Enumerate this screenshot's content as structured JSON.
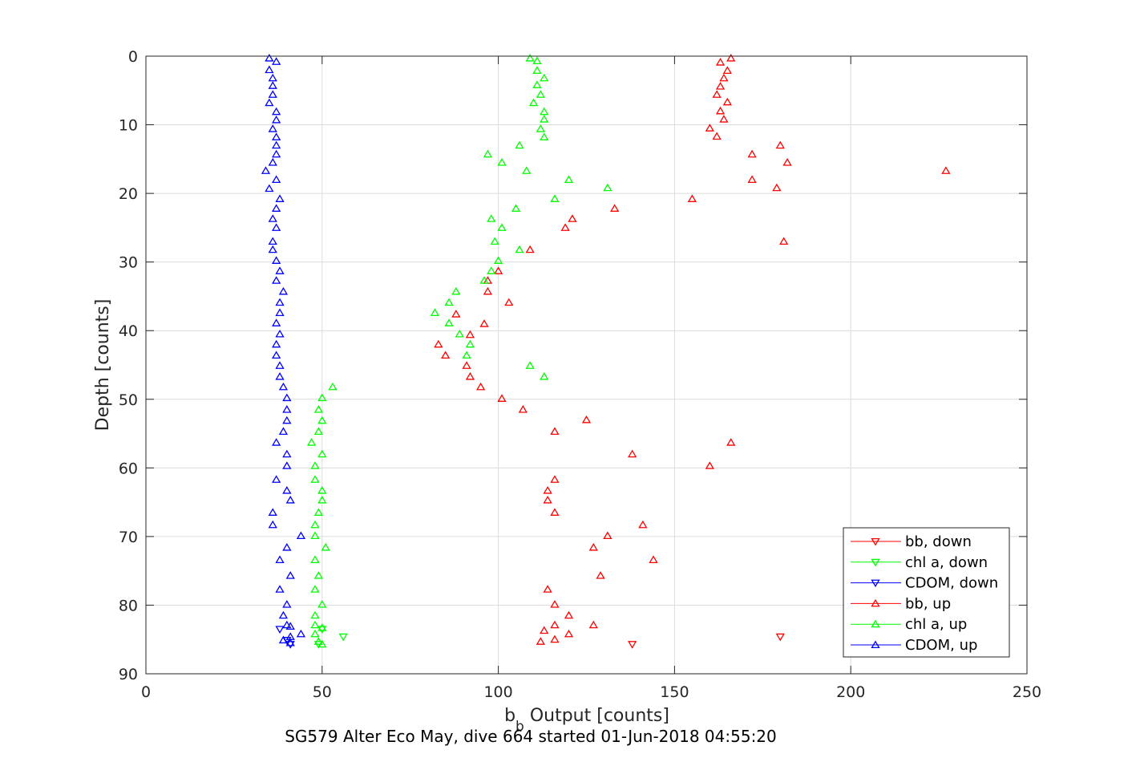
{
  "chart_data": {
    "type": "scatter",
    "xlabel": "b",
    "xlabel_sub": "b",
    "xlabel_rest": " Output [counts]",
    "ylabel": "Depth [counts]",
    "subtitle": "SG579 Alter Eco May, dive 664 started 01-Jun-2018 04:55:20",
    "xlim": [
      0,
      250
    ],
    "ylim": [
      0,
      90
    ],
    "y_reversed": true,
    "grid": true,
    "legend_position": "bottom-right",
    "xticks": [
      0,
      50,
      100,
      150,
      200,
      250
    ],
    "yticks": [
      0,
      10,
      20,
      30,
      40,
      50,
      60,
      70,
      80,
      90
    ],
    "legend": [
      {
        "label": "bb, down",
        "color": "#ff0000",
        "marker": "triangle-down"
      },
      {
        "label": "chl a, down",
        "color": "#00ff00",
        "marker": "triangle-down"
      },
      {
        "label": "CDOM, down",
        "color": "#0000ff",
        "marker": "triangle-down"
      },
      {
        "label": "bb, up",
        "color": "#ff0000",
        "marker": "triangle-up"
      },
      {
        "label": "chl a, up",
        "color": "#00ff00",
        "marker": "triangle-up"
      },
      {
        "label": "CDOM, up",
        "color": "#0000ff",
        "marker": "triangle-up"
      }
    ],
    "series": [
      {
        "name": "bb, down",
        "color": "#ff0000",
        "marker": "triangle-down",
        "points": [
          [
            180,
            84.6
          ],
          [
            138,
            85.7
          ]
        ]
      },
      {
        "name": "chl a, down",
        "color": "#00ff00",
        "marker": "triangle-down",
        "points": [
          [
            56,
            84.6
          ],
          [
            50,
            83.5
          ],
          [
            49,
            85.7
          ]
        ]
      },
      {
        "name": "CDOM, down",
        "color": "#0000ff",
        "marker": "triangle-down",
        "points": [
          [
            38,
            83.5
          ],
          [
            40,
            85.1
          ],
          [
            41,
            85.7
          ]
        ]
      },
      {
        "name": "bb, up",
        "color": "#ff0000",
        "marker": "triangle-up",
        "points": [
          [
            166,
            0.3
          ],
          [
            163,
            0.9
          ],
          [
            165,
            2.1
          ],
          [
            164,
            3.2
          ],
          [
            163,
            4.4
          ],
          [
            162,
            5.6
          ],
          [
            165,
            6.7
          ],
          [
            163,
            8.0
          ],
          [
            164,
            9.2
          ],
          [
            160,
            10.5
          ],
          [
            162,
            11.7
          ],
          [
            180,
            13.0
          ],
          [
            172,
            14.3
          ],
          [
            182,
            15.5
          ],
          [
            227,
            16.7
          ],
          [
            172,
            18.0
          ],
          [
            179,
            19.2
          ],
          [
            155,
            20.8
          ],
          [
            133,
            22.2
          ],
          [
            121,
            23.7
          ],
          [
            119,
            25.0
          ],
          [
            181,
            27.0
          ],
          [
            109,
            28.2
          ],
          [
            100,
            31.3
          ],
          [
            97,
            32.7
          ],
          [
            97,
            34.3
          ],
          [
            103,
            35.9
          ],
          [
            88,
            37.6
          ],
          [
            96,
            39.0
          ],
          [
            92,
            40.6
          ],
          [
            83,
            42.0
          ],
          [
            85,
            43.6
          ],
          [
            91,
            45.1
          ],
          [
            92,
            46.7
          ],
          [
            95,
            48.2
          ],
          [
            101,
            49.9
          ],
          [
            107,
            51.5
          ],
          [
            125,
            53.0
          ],
          [
            116,
            54.7
          ],
          [
            166,
            56.3
          ],
          [
            138,
            58.0
          ],
          [
            160,
            59.7
          ],
          [
            116,
            61.7
          ],
          [
            114,
            63.3
          ],
          [
            114,
            64.7
          ],
          [
            116,
            66.5
          ],
          [
            141,
            68.3
          ],
          [
            131,
            69.9
          ],
          [
            127,
            71.6
          ],
          [
            144,
            73.4
          ],
          [
            129,
            75.7
          ],
          [
            114,
            77.7
          ],
          [
            116,
            79.9
          ],
          [
            120,
            81.5
          ],
          [
            116,
            82.9
          ],
          [
            127,
            82.9
          ],
          [
            113,
            83.7
          ],
          [
            120,
            84.2
          ],
          [
            112,
            85.3
          ],
          [
            116,
            85.0
          ]
        ]
      },
      {
        "name": "chl a, up",
        "color": "#00ff00",
        "marker": "triangle-up",
        "points": [
          [
            109,
            0.3
          ],
          [
            111,
            0.7
          ],
          [
            111,
            2.1
          ],
          [
            113,
            3.2
          ],
          [
            111,
            4.2
          ],
          [
            112,
            5.6
          ],
          [
            110,
            6.8
          ],
          [
            113,
            8.1
          ],
          [
            113,
            9.2
          ],
          [
            112,
            10.6
          ],
          [
            113,
            11.8
          ],
          [
            106,
            13.0
          ],
          [
            97,
            14.3
          ],
          [
            101,
            15.5
          ],
          [
            108,
            16.7
          ],
          [
            120,
            18.0
          ],
          [
            131,
            19.2
          ],
          [
            116,
            20.8
          ],
          [
            105,
            22.2
          ],
          [
            98,
            23.7
          ],
          [
            101,
            25.0
          ],
          [
            99,
            27.0
          ],
          [
            106,
            28.2
          ],
          [
            100,
            29.8
          ],
          [
            98,
            31.3
          ],
          [
            96,
            32.7
          ],
          [
            88,
            34.3
          ],
          [
            86,
            35.9
          ],
          [
            82,
            37.4
          ],
          [
            86,
            38.9
          ],
          [
            89,
            40.5
          ],
          [
            92,
            42.0
          ],
          [
            91,
            43.6
          ],
          [
            109,
            45.1
          ],
          [
            113,
            46.7
          ],
          [
            53,
            48.2
          ],
          [
            50,
            49.8
          ],
          [
            49,
            51.5
          ],
          [
            50,
            53.1
          ],
          [
            49,
            54.7
          ],
          [
            47,
            56.3
          ],
          [
            50,
            58.0
          ],
          [
            48,
            59.7
          ],
          [
            48,
            61.7
          ],
          [
            50,
            63.3
          ],
          [
            50,
            64.7
          ],
          [
            49,
            66.5
          ],
          [
            48,
            68.3
          ],
          [
            48,
            69.9
          ],
          [
            51,
            71.6
          ],
          [
            48,
            73.4
          ],
          [
            49,
            75.7
          ],
          [
            48,
            77.7
          ],
          [
            50,
            79.9
          ],
          [
            48,
            81.5
          ],
          [
            48,
            82.9
          ],
          [
            50,
            83.3
          ],
          [
            48,
            84.2
          ],
          [
            49,
            85.3
          ],
          [
            50,
            85.7
          ]
        ]
      },
      {
        "name": "CDOM, up",
        "color": "#0000ff",
        "marker": "triangle-up",
        "points": [
          [
            35,
            0.3
          ],
          [
            37,
            0.8
          ],
          [
            35,
            2.0
          ],
          [
            36,
            3.2
          ],
          [
            36,
            4.3
          ],
          [
            36,
            5.6
          ],
          [
            35,
            6.8
          ],
          [
            37,
            8.1
          ],
          [
            37,
            9.3
          ],
          [
            36,
            10.6
          ],
          [
            37,
            11.8
          ],
          [
            37,
            13.0
          ],
          [
            37,
            14.3
          ],
          [
            36,
            15.5
          ],
          [
            34,
            16.7
          ],
          [
            37,
            18.0
          ],
          [
            35,
            19.3
          ],
          [
            38,
            20.8
          ],
          [
            37,
            22.2
          ],
          [
            36,
            23.7
          ],
          [
            37,
            25.0
          ],
          [
            36,
            27.0
          ],
          [
            36,
            28.2
          ],
          [
            37,
            29.8
          ],
          [
            38,
            31.3
          ],
          [
            37,
            32.7
          ],
          [
            39,
            34.3
          ],
          [
            38,
            35.9
          ],
          [
            38,
            37.4
          ],
          [
            37,
            38.9
          ],
          [
            38,
            40.5
          ],
          [
            37,
            42.0
          ],
          [
            37,
            43.6
          ],
          [
            38,
            45.1
          ],
          [
            38,
            46.7
          ],
          [
            39,
            48.2
          ],
          [
            40,
            49.8
          ],
          [
            40,
            51.5
          ],
          [
            40,
            53.1
          ],
          [
            39,
            54.7
          ],
          [
            37,
            56.3
          ],
          [
            40,
            58.0
          ],
          [
            40,
            59.7
          ],
          [
            37,
            61.7
          ],
          [
            40,
            63.3
          ],
          [
            41,
            64.7
          ],
          [
            36,
            66.5
          ],
          [
            36,
            68.3
          ],
          [
            44,
            69.9
          ],
          [
            40,
            71.6
          ],
          [
            38,
            73.4
          ],
          [
            41,
            75.7
          ],
          [
            38,
            77.7
          ],
          [
            40,
            79.9
          ],
          [
            39,
            81.5
          ],
          [
            40,
            82.9
          ],
          [
            41,
            83.1
          ],
          [
            44,
            84.2
          ],
          [
            41,
            84.6
          ],
          [
            39,
            85.1
          ],
          [
            41,
            85.5
          ]
        ]
      }
    ]
  }
}
